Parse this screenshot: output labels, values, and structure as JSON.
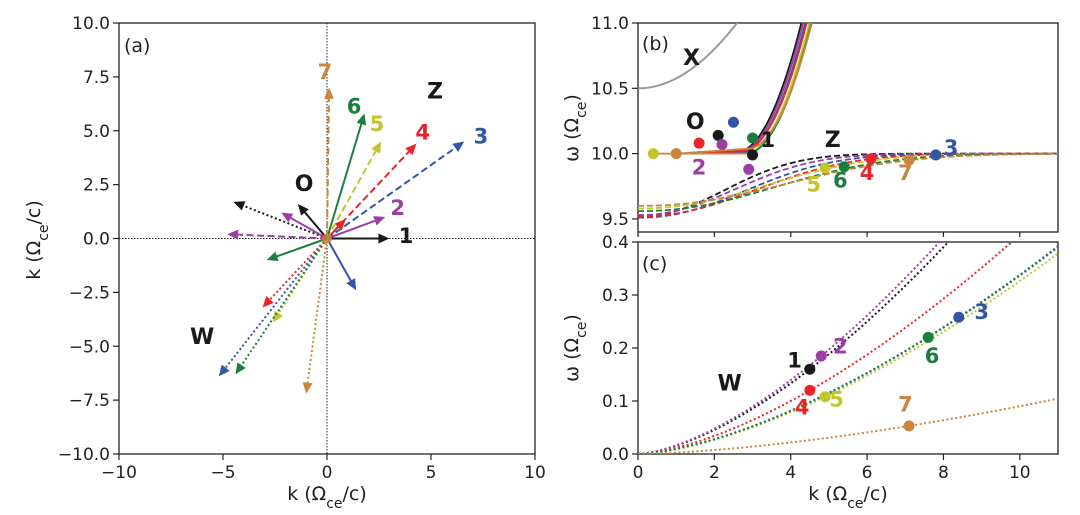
{
  "colors": {
    "1": "#1a1a1a",
    "2": "#9b3fa6",
    "3": "#3355a8",
    "4": "#e8262a",
    "5": "#c3c62a",
    "6": "#1a7f3c",
    "7": "#c8863e",
    "X": "#9a9a9a",
    "axis": "#222222"
  },
  "chart_data": [
    {
      "id": "a",
      "type": "scatter",
      "panel_label": "(a)",
      "xlabel": "k (Ωce/c)",
      "ylabel": "k (Ωce/c)",
      "xlim": [
        -10,
        10
      ],
      "ylim": [
        -10,
        10
      ],
      "xticks": [
        -10,
        -5,
        0,
        5,
        10
      ],
      "yticks": [
        -10.0,
        -7.5,
        -5.0,
        -2.5,
        0.0,
        2.5,
        5.0,
        7.5,
        10.0
      ],
      "xtick_labels": [
        "−10",
        "−5",
        "0",
        "5",
        "10"
      ],
      "ytick_labels": [
        "−10.0",
        "−7.5",
        "−5.0",
        "−2.5",
        "0.0",
        "2.5",
        "5.0",
        "7.5",
        "10.0"
      ],
      "vectors": [
        {
          "curve": "1",
          "mode": "O",
          "x": 3.0,
          "y": 0.0,
          "style": "solid"
        },
        {
          "curve": "1",
          "mode": "Z",
          "x": -4.5,
          "y": 1.7,
          "style": "dotted"
        },
        {
          "curve": "2",
          "mode": "O",
          "x": 2.8,
          "y": 1.0,
          "style": "solid"
        },
        {
          "curve": "2",
          "mode": "Z",
          "x": -4.8,
          "y": 0.2,
          "style": "dashed"
        },
        {
          "curve": "2",
          "mode": "O",
          "x": -2.2,
          "y": 1.2,
          "style": "solid"
        },
        {
          "curve": "3",
          "mode": "Z",
          "x": 6.6,
          "y": 4.5,
          "style": "dashed"
        },
        {
          "curve": "3",
          "mode": "O",
          "x": 1.4,
          "y": -2.4,
          "style": "solid"
        },
        {
          "curve": "3",
          "mode": "W",
          "x": -5.2,
          "y": -6.4,
          "style": "dotted"
        },
        {
          "curve": "4",
          "mode": "Z",
          "x": 4.3,
          "y": 4.4,
          "style": "dashed"
        },
        {
          "curve": "4",
          "mode": "O",
          "x": 0.9,
          "y": 0.9,
          "style": "solid"
        },
        {
          "curve": "4",
          "mode": "W",
          "x": -3.1,
          "y": -3.2,
          "style": "dotted"
        },
        {
          "curve": "5",
          "mode": "Z",
          "x": 2.6,
          "y": 4.5,
          "style": "dashed"
        },
        {
          "curve": "5",
          "mode": "W",
          "x": -2.6,
          "y": -3.9,
          "style": "dotted"
        },
        {
          "curve": "6",
          "mode": "O",
          "x": 1.8,
          "y": 5.8,
          "style": "solid"
        },
        {
          "curve": "6",
          "mode": "O",
          "x": -2.9,
          "y": -1.0,
          "style": "solid"
        },
        {
          "curve": "6",
          "mode": "W",
          "x": -4.4,
          "y": -6.3,
          "style": "dotted"
        },
        {
          "curve": "7",
          "mode": "Z",
          "x": 0.1,
          "y": 7.0,
          "style": "dashed"
        },
        {
          "curve": "7",
          "mode": "W",
          "x": -1.0,
          "y": -7.2,
          "style": "dotted"
        },
        {
          "curve": "O",
          "mode": "O",
          "x": -1.4,
          "y": 1.6,
          "style": "solid",
          "color": "1"
        }
      ],
      "curve_labels": [
        {
          "text": "1",
          "x": 3.8,
          "y": -0.2,
          "color": "1"
        },
        {
          "text": "2",
          "x": 3.4,
          "y": 1.1,
          "color": "2"
        },
        {
          "text": "3",
          "x": 7.4,
          "y": 4.4,
          "color": "3"
        },
        {
          "text": "4",
          "x": 4.6,
          "y": 4.6,
          "color": "4"
        },
        {
          "text": "5",
          "x": 2.4,
          "y": 5.0,
          "color": "5"
        },
        {
          "text": "6",
          "x": 1.3,
          "y": 5.8,
          "color": "6"
        },
        {
          "text": "7",
          "x": -0.1,
          "y": 7.4,
          "color": "7"
        }
      ],
      "mode_labels": [
        {
          "text": "O",
          "x": -1.1,
          "y": 2.2,
          "color": "1"
        },
        {
          "text": "Z",
          "x": 5.2,
          "y": 6.5,
          "color": "1"
        },
        {
          "text": "W",
          "x": -6.0,
          "y": -4.9,
          "color": "1"
        }
      ]
    },
    {
      "id": "b",
      "type": "line",
      "panel_label": "(b)",
      "ylabel": "ω (Ωce)",
      "xlim": [
        0,
        11
      ],
      "ylim": [
        9.4,
        11.0
      ],
      "yticks": [
        9.5,
        10.0,
        10.5,
        11.0
      ],
      "ytick_labels": [
        "9.5",
        "10.0",
        "10.5",
        "11.0"
      ],
      "xticks": [
        0,
        2,
        4,
        6,
        8,
        10
      ],
      "upper_curve_kstart": [
        2.1,
        2.2,
        2.5,
        1.6,
        3.0,
        2.9,
        1.0
      ],
      "dashed_curve_amplitude": [
        0.48,
        0.47,
        0.49,
        0.48,
        0.42,
        0.44,
        0.4
      ],
      "points": [
        {
          "curve": "1",
          "k": 3.0,
          "w": 9.99
        },
        {
          "curve": "2",
          "k": 2.9,
          "w": 9.88
        },
        {
          "curve": "3",
          "k": 7.8,
          "w": 9.99
        },
        {
          "curve": "4",
          "k": 6.1,
          "w": 9.96
        },
        {
          "curve": "5",
          "k": 4.9,
          "w": 9.89
        },
        {
          "curve": "6",
          "k": 5.4,
          "w": 9.9
        },
        {
          "curve": "7",
          "k": 7.1,
          "w": 9.95
        },
        {
          "curve": "1",
          "k": 2.1,
          "w": 10.14
        },
        {
          "curve": "3",
          "k": 2.5,
          "w": 10.24
        },
        {
          "curve": "4",
          "k": 1.6,
          "w": 10.08
        },
        {
          "curve": "2",
          "k": 2.2,
          "w": 10.07
        },
        {
          "curve": "6",
          "k": 3.0,
          "w": 10.12
        },
        {
          "curve": "5",
          "k": 0.4,
          "w": 10.0
        },
        {
          "curve": "7",
          "k": 1.0,
          "w": 10.0
        }
      ],
      "curve_labels": [
        {
          "text": "1",
          "k": 3.4,
          "w": 10.05,
          "color": "1"
        },
        {
          "text": "2",
          "k": 1.6,
          "w": 9.84,
          "color": "2"
        },
        {
          "text": "3",
          "k": 8.2,
          "w": 9.99,
          "color": "3"
        },
        {
          "text": "4",
          "k": 6.0,
          "w": 9.8,
          "color": "4"
        },
        {
          "text": "5",
          "k": 4.6,
          "w": 9.71,
          "color": "5"
        },
        {
          "text": "6",
          "k": 5.3,
          "w": 9.74,
          "color": "6"
        },
        {
          "text": "7",
          "k": 7.0,
          "w": 9.8,
          "color": "7"
        }
      ],
      "mode_labels": [
        {
          "text": "X",
          "k": 1.4,
          "w": 10.68,
          "color": "1"
        },
        {
          "text": "O",
          "k": 1.5,
          "w": 10.19,
          "color": "1"
        },
        {
          "text": "Z",
          "k": 5.1,
          "w": 10.05,
          "color": "1"
        }
      ]
    },
    {
      "id": "c",
      "type": "line",
      "panel_label": "(c)",
      "xlabel": "k (Ωce/c)",
      "ylabel": "ω (Ωce)",
      "xlim": [
        0,
        11
      ],
      "ylim": [
        0.0,
        0.4
      ],
      "xticks": [
        0,
        2,
        4,
        6,
        8,
        10
      ],
      "xtick_labels": [
        "0",
        "2",
        "4",
        "6",
        "8",
        "10"
      ],
      "yticks": [
        0.0,
        0.1,
        0.2,
        0.3,
        0.4
      ],
      "ytick_labels": [
        "0.0",
        "0.1",
        "0.2",
        "0.3",
        "0.4"
      ],
      "points": [
        {
          "curve": "1",
          "k": 4.5,
          "w": 0.16
        },
        {
          "curve": "2",
          "k": 4.8,
          "w": 0.185
        },
        {
          "curve": "3",
          "k": 8.4,
          "w": 0.258
        },
        {
          "curve": "4",
          "k": 4.5,
          "w": 0.12
        },
        {
          "curve": "5",
          "k": 4.9,
          "w": 0.108
        },
        {
          "curve": "6",
          "k": 7.6,
          "w": 0.22
        },
        {
          "curve": "7",
          "k": 7.1,
          "w": 0.053
        }
      ],
      "curve_labels": [
        {
          "text": "1",
          "k": 4.1,
          "w": 0.163,
          "color": "1"
        },
        {
          "text": "2",
          "k": 5.3,
          "w": 0.19,
          "color": "2"
        },
        {
          "text": "3",
          "k": 9.0,
          "w": 0.255,
          "color": "3"
        },
        {
          "text": "4",
          "k": 4.3,
          "w": 0.075,
          "color": "4"
        },
        {
          "text": "5",
          "k": 5.2,
          "w": 0.09,
          "color": "5"
        },
        {
          "text": "6",
          "k": 7.7,
          "w": 0.172,
          "color": "6"
        },
        {
          "text": "7",
          "k": 7.0,
          "w": 0.08,
          "color": "7"
        }
      ],
      "mode_labels": [
        {
          "text": "W",
          "k": 2.4,
          "w": 0.12,
          "color": "1"
        }
      ]
    }
  ]
}
